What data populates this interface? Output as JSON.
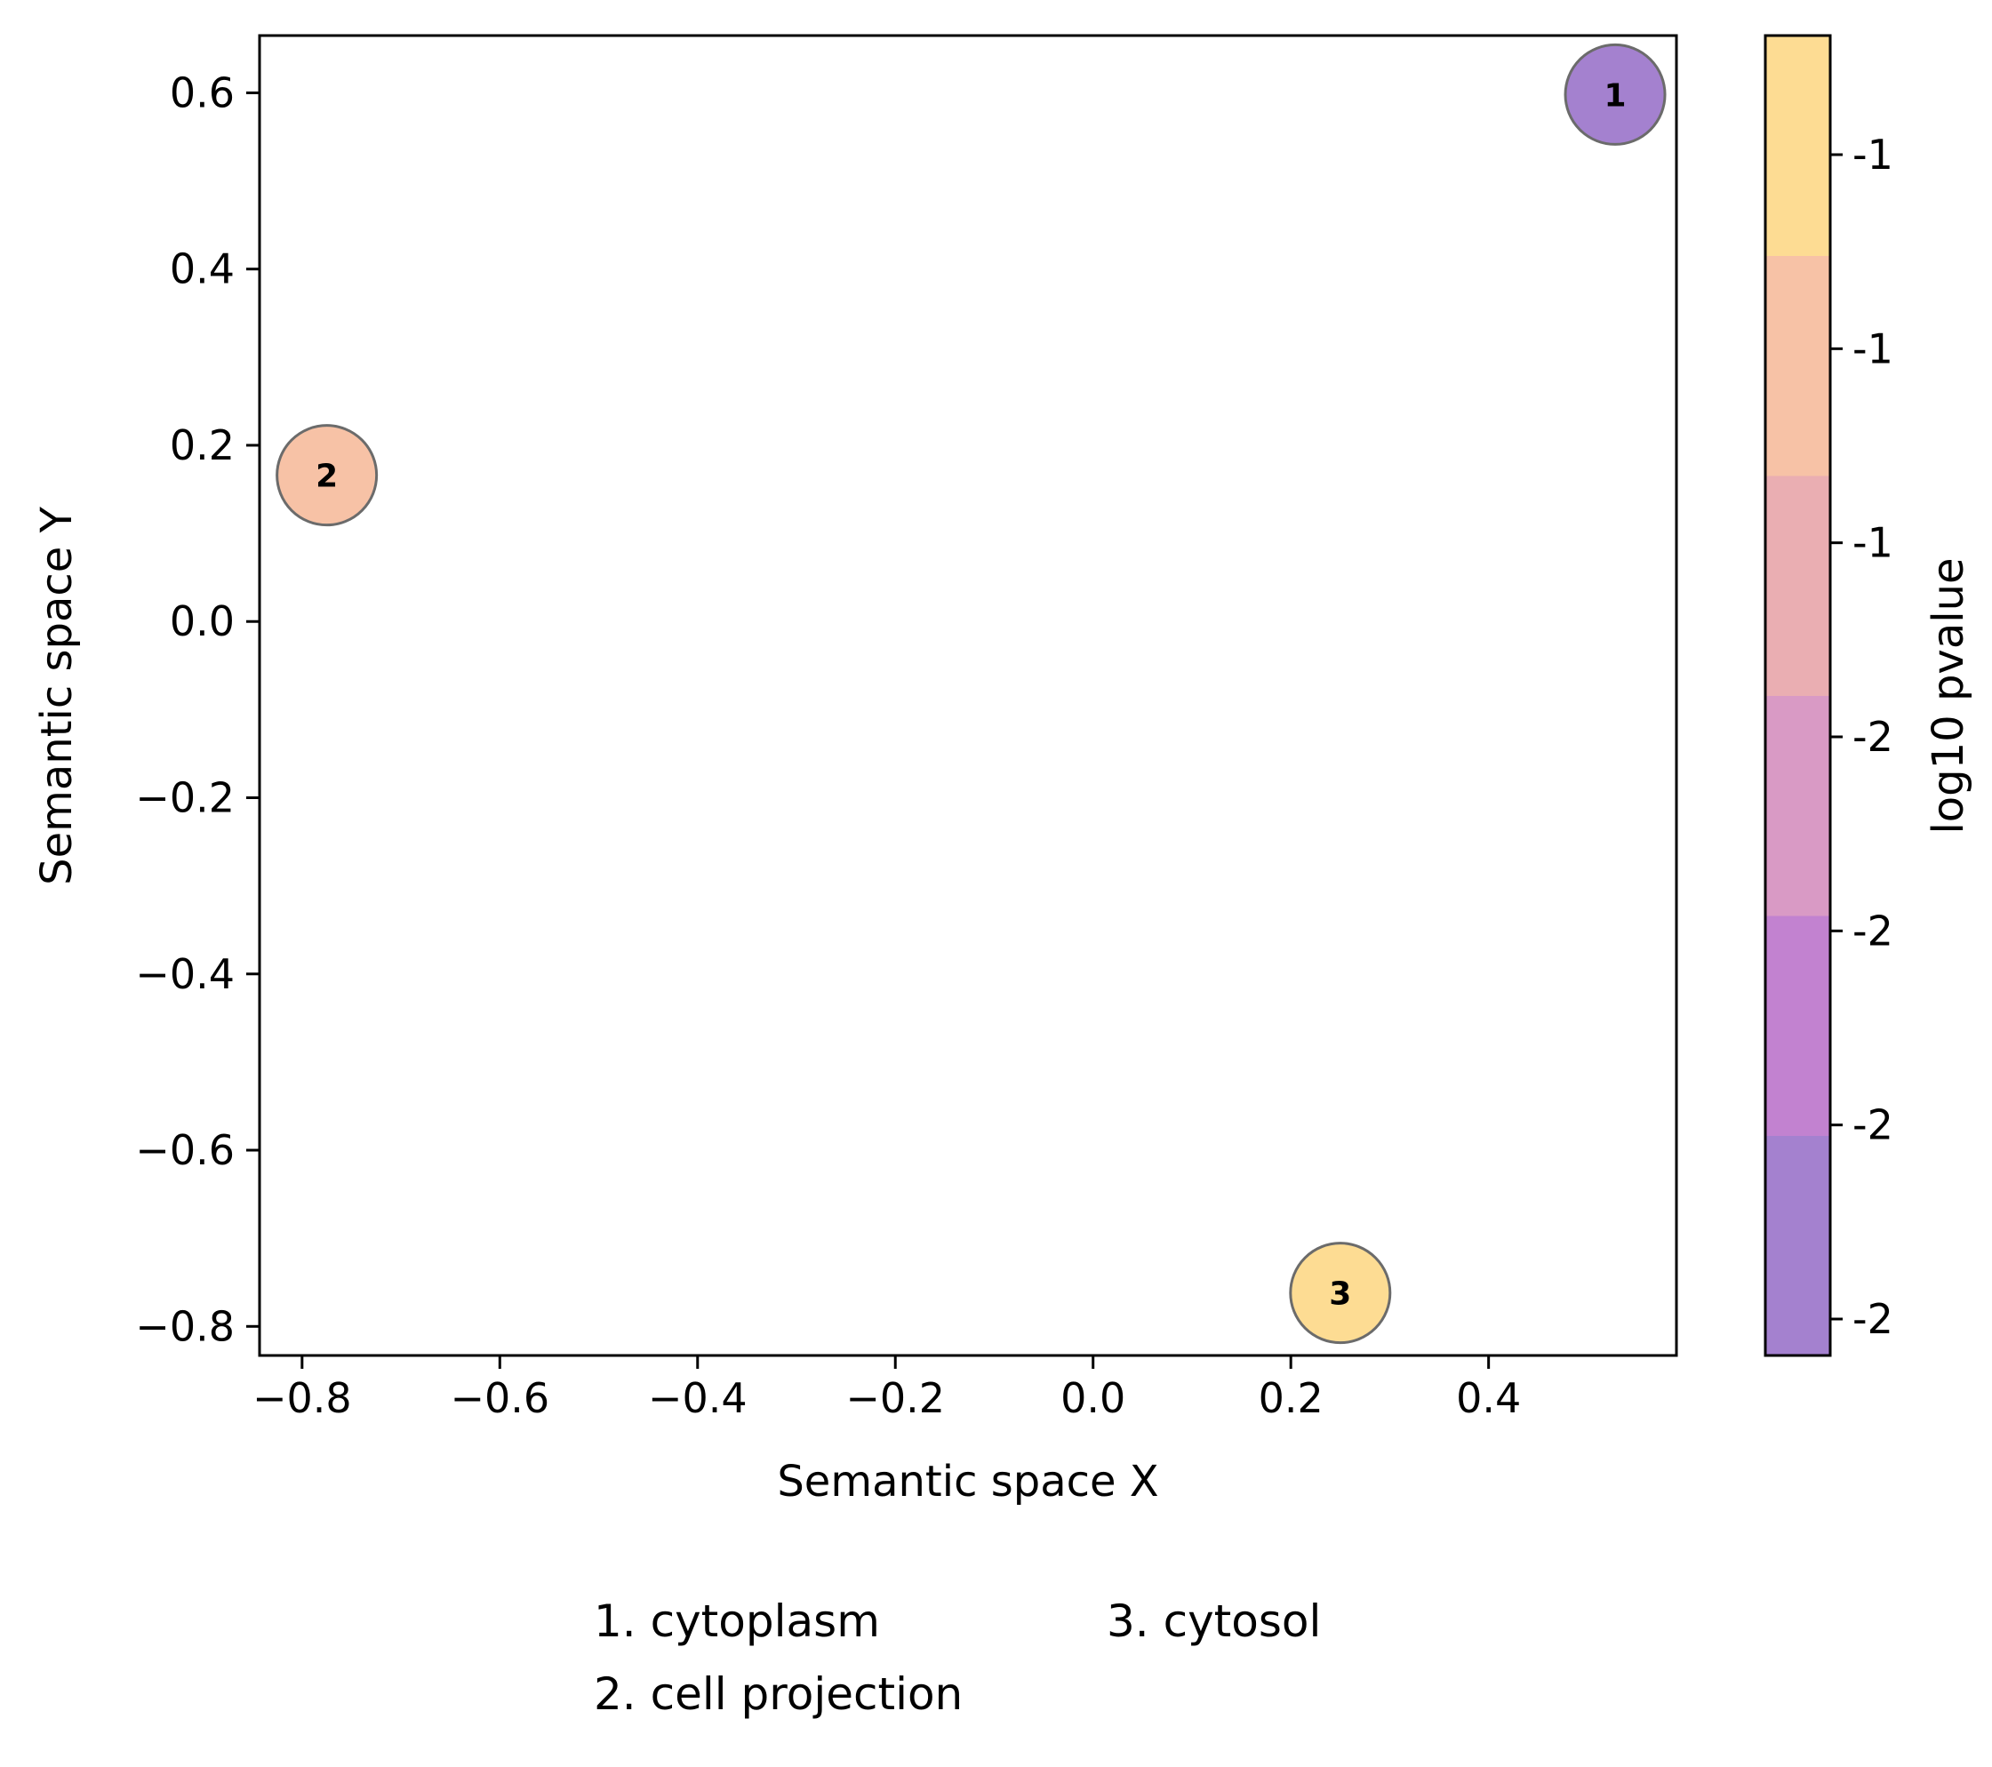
{
  "chart_data": {
    "type": "scatter",
    "title": "",
    "xlabel": "Semantic space X",
    "ylabel": "Semantic space Y",
    "xlim": [
      -0.843,
      0.59
    ],
    "ylim": [
      -0.833,
      0.665
    ],
    "xticks": [
      -0.8,
      -0.6,
      -0.4,
      -0.2,
      0.0,
      0.2,
      0.4
    ],
    "xtick_labels": [
      "−0.8",
      "−0.6",
      "−0.4",
      "−0.2",
      "0.0",
      "0.2",
      "0.4"
    ],
    "yticks": [
      0.6,
      0.4,
      0.2,
      0.0,
      -0.2,
      -0.4,
      -0.6,
      -0.8
    ],
    "ytick_labels": [
      "0.6",
      "0.4",
      "0.2",
      "0.0",
      "−0.2",
      "−0.4",
      "−0.6",
      "−0.8"
    ],
    "grid": false,
    "points": [
      {
        "label": "1",
        "name": "cytoplasm",
        "x": 0.528,
        "y": 0.598,
        "color": "#a481cf"
      },
      {
        "label": "2",
        "name": "cell projection",
        "x": -0.775,
        "y": 0.166,
        "color": "#f7c2a6"
      },
      {
        "label": "3",
        "name": "cytosol",
        "x": 0.25,
        "y": -0.762,
        "color": "#fddc93"
      }
    ],
    "colorbar": {
      "label": "log10 pvalue",
      "bands": [
        "#a481cf",
        "#c282d0",
        "#d99ac5",
        "#eaaeb2",
        "#f7c2a6",
        "#fddc93"
      ],
      "tick_labels": [
        "-2",
        "-2",
        "-2",
        "-2",
        "-1",
        "-1",
        "-1"
      ]
    },
    "legend": {
      "placement": "bottom",
      "entries": [
        "1. cytoplasm",
        "2. cell projection",
        "3. cytosol"
      ]
    }
  }
}
